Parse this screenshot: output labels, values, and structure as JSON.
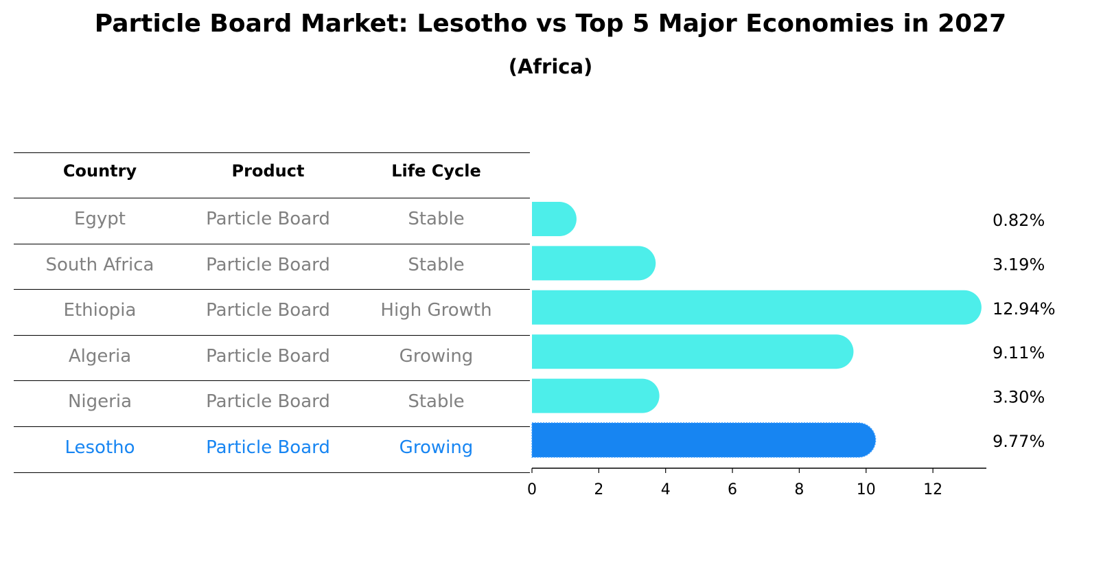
{
  "chart_data": {
    "type": "bar",
    "title": "Particle Board Market: Lesotho vs Top 5 Major Economies in 2027",
    "subtitle": "(Africa)",
    "table": {
      "headers": [
        "Country",
        "Product",
        "Life Cycle"
      ],
      "rows": [
        {
          "country": "Egypt",
          "product": "Particle Board",
          "life_cycle": "Stable"
        },
        {
          "country": "South Africa",
          "product": "Particle Board",
          "life_cycle": "Stable"
        },
        {
          "country": "Ethiopia",
          "product": "Particle Board",
          "life_cycle": "High Growth"
        },
        {
          "country": "Algeria",
          "product": "Particle Board",
          "life_cycle": "Growing"
        },
        {
          "country": "Nigeria",
          "product": "Particle Board",
          "life_cycle": "Stable"
        },
        {
          "country": "Lesotho",
          "product": "Particle Board",
          "life_cycle": "Growing"
        }
      ]
    },
    "categories": [
      "Egypt",
      "South Africa",
      "Ethiopia",
      "Algeria",
      "Nigeria",
      "Lesotho"
    ],
    "values": [
      0.82,
      3.19,
      12.94,
      9.11,
      3.3,
      9.77
    ],
    "value_labels": [
      "0.82%",
      "3.19%",
      "12.94%",
      "9.11%",
      "3.30%",
      "9.77%"
    ],
    "highlight": "Lesotho",
    "xlim": [
      0,
      13.6
    ],
    "xticks": [
      0,
      2,
      4,
      6,
      8,
      10,
      12
    ],
    "grid": false,
    "colors": {
      "bar": "#4deeea",
      "highlight_bar": "#1785f2",
      "row_text": "#808080",
      "highlight_text": "#1785f2",
      "axis": "#000000"
    }
  }
}
